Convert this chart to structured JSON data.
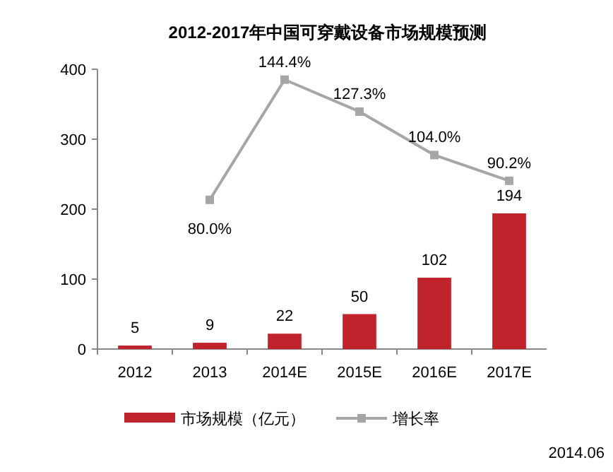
{
  "chart_data": {
    "type": "bar",
    "title": "2012-2017年中国可穿戴设备市场规模预测",
    "categories": [
      "2012",
      "2013",
      "2014E",
      "2015E",
      "2016E",
      "2017E"
    ],
    "series": [
      {
        "name": "市场规模（亿元）",
        "color": "#c0232b",
        "values": [
          5,
          9,
          22,
          50,
          102,
          194
        ],
        "value_labels": [
          "5",
          "9",
          "22",
          "50",
          "102",
          "194"
        ]
      },
      {
        "name": "增长率",
        "type": "line",
        "axis": "y2",
        "color": "#a6a6a6",
        "marker": "square",
        "values": [
          null,
          80.0,
          144.4,
          127.3,
          104.0,
          90.2
        ],
        "value_labels": [
          null,
          "80.0%",
          "144.4%",
          "127.3%",
          "104.0%",
          "90.2%"
        ]
      }
    ],
    "ylim": [
      0,
      400
    ],
    "yticks": [
      0,
      100,
      200,
      300,
      400
    ],
    "y2lim": [
      0,
      150
    ],
    "legend": "bottom",
    "grid": false,
    "annotations": [
      "2014.06"
    ]
  }
}
